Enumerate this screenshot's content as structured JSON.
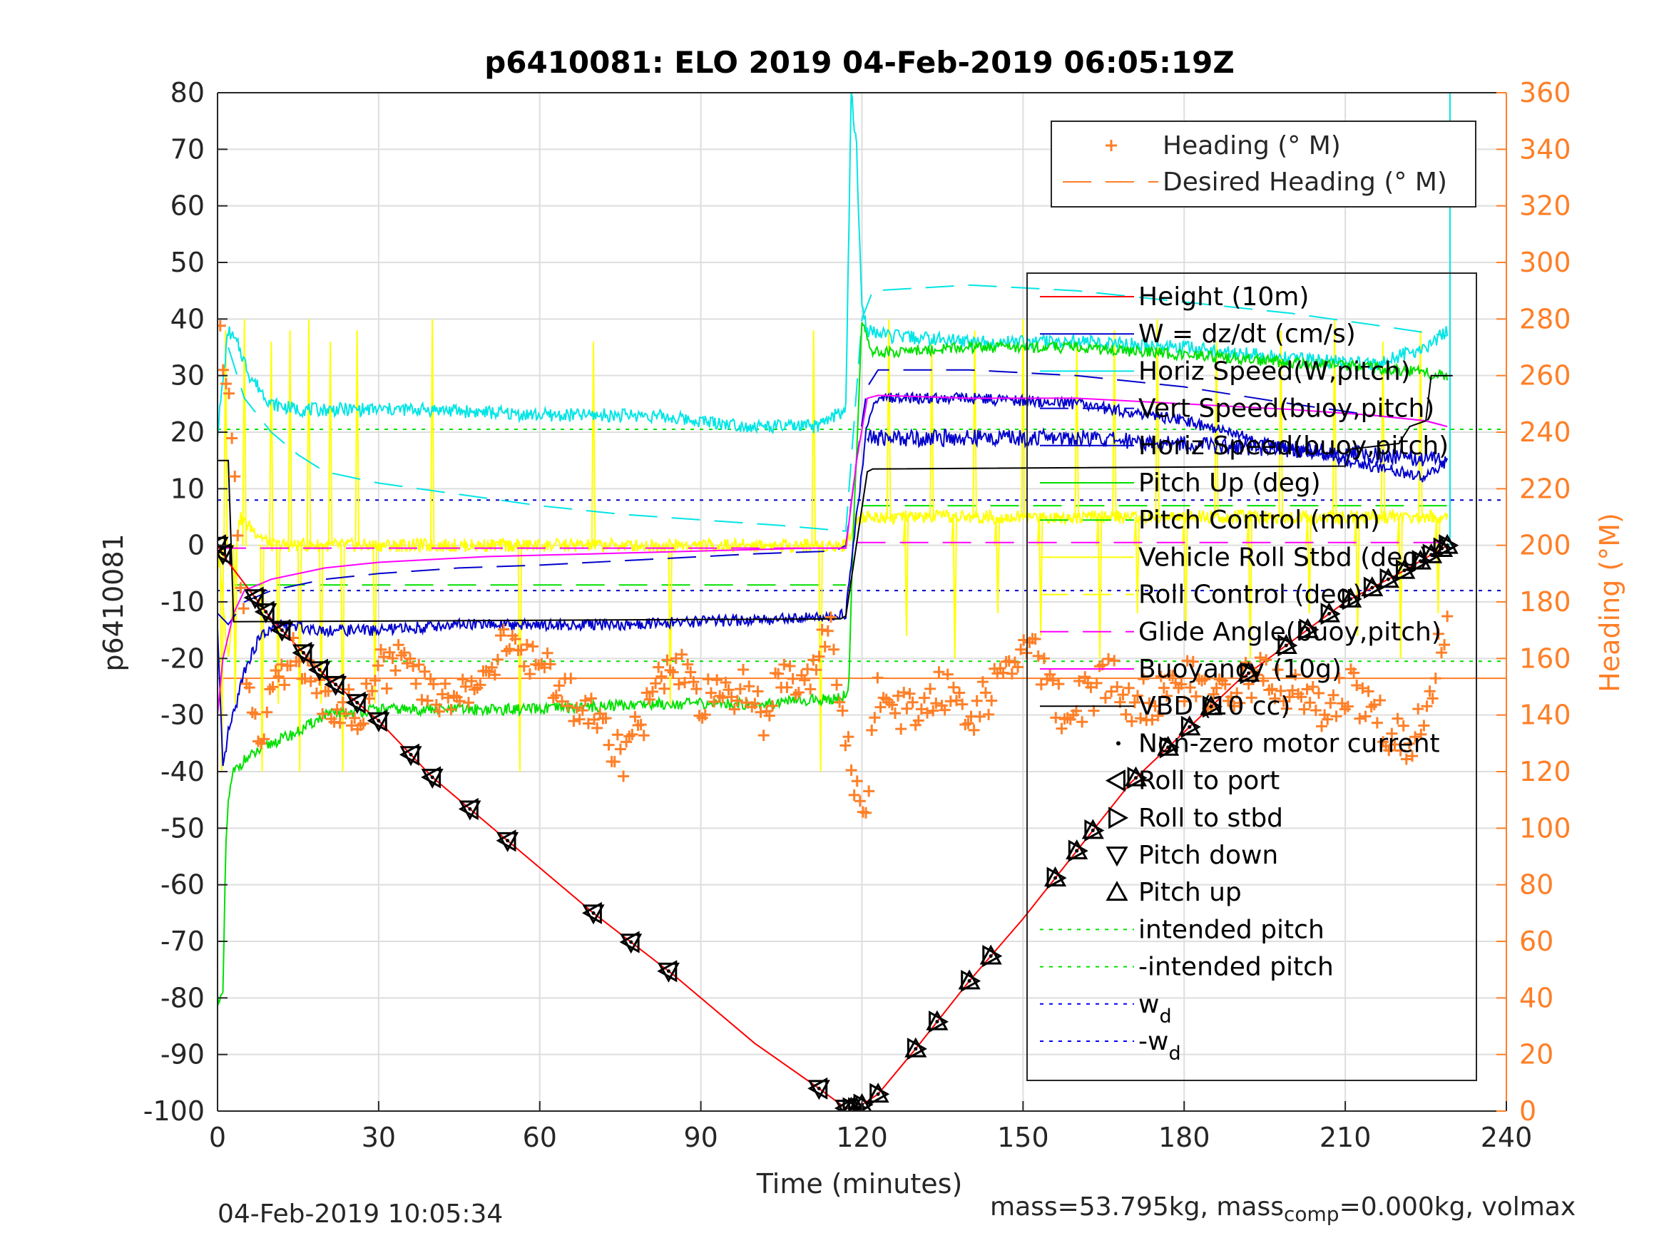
{
  "chart_data": {
    "type": "line",
    "title": "p6410081: ELO 2019 04-Feb-2019 06:05:19Z",
    "xlabel": "Time (minutes)",
    "ylabel_left": "p6410081",
    "ylabel_right": "Heading (°M)",
    "xlim": [
      0,
      240
    ],
    "ylim_left": [
      -100,
      80
    ],
    "ylim_right": [
      0,
      360
    ],
    "x_ticks": [
      "0",
      "30",
      "60",
      "90",
      "120",
      "150",
      "180",
      "210",
      "240"
    ],
    "y_ticks_left": [
      "80",
      "70",
      "60",
      "50",
      "40",
      "30",
      "20",
      "10",
      "0",
      "-10",
      "-20",
      "-30",
      "-40",
      "-50",
      "-60",
      "-70",
      "-80",
      "-90",
      "-100"
    ],
    "y_ticks_right": [
      "360",
      "340",
      "320",
      "300",
      "280",
      "260",
      "240",
      "220",
      "200",
      "180",
      "160",
      "140",
      "120",
      "100",
      "80",
      "60",
      "40",
      "20",
      "0"
    ],
    "grid": true,
    "footer_left": "04-Feb-2019 10:05:34",
    "footer_right_pre": "mass=53.795kg, mass",
    "footer_right_sub": "comp",
    "footer_right_post": "=0.000kg, volmax",
    "colors": {
      "heading": "#ff7f27",
      "height": "#ff0000",
      "w": "#0000cc",
      "horiz_speed": "#00e5e5",
      "pitch": "#00e000",
      "roll": "#ffff00",
      "glide": "#ff00ff",
      "vbd": "#000000",
      "text": "#262626"
    },
    "legend_top": {
      "position": "top-right",
      "entries": [
        "Heading (° M)",
        "Desired Heading (° M)"
      ]
    },
    "legend_main": {
      "position": "right",
      "entries": [
        {
          "label": "Height (10m)",
          "color": "#ff0000",
          "style": "solid"
        },
        {
          "label": "W = dz/dt (cm/s)",
          "color": "#0000cc",
          "style": "solid"
        },
        {
          "label": "Horiz Speed(W,pitch)",
          "color": "#00e5e5",
          "style": "solid"
        },
        {
          "label": "Vert Speed(buoy,pitch)",
          "color": "#0000cc",
          "style": "dashed"
        },
        {
          "label": "Horiz Speed(buoy,pitch)",
          "color": "#0000cc",
          "style": "solid"
        },
        {
          "label": "Pitch Up (deg)",
          "color": "#00e000",
          "style": "solid"
        },
        {
          "label": "Pitch Control (mm)",
          "color": "#00e000",
          "style": "dashed"
        },
        {
          "label": "Vehicle Roll Stbd (deg)",
          "color": "#ffff00",
          "style": "solid"
        },
        {
          "label": "Roll Control (deg)",
          "color": "#ffff00",
          "style": "dashed"
        },
        {
          "label": "Glide Angle(buoy,pitch)",
          "color": "#ff00ff",
          "style": "dashed"
        },
        {
          "label": "Buoyancy (10g)",
          "color": "#ff00ff",
          "style": "solid"
        },
        {
          "label": "VBD (10 cc)",
          "color": "#000000",
          "style": "solid"
        },
        {
          "label": "Non-zero motor current",
          "color": "#000000",
          "style": "dot"
        },
        {
          "label": "Roll to port",
          "color": "#000000",
          "style": "tri-left"
        },
        {
          "label": "Roll to stbd",
          "color": "#000000",
          "style": "tri-right"
        },
        {
          "label": "Pitch down",
          "color": "#000000",
          "style": "tri-down"
        },
        {
          "label": "Pitch up",
          "color": "#000000",
          "style": "tri-up"
        },
        {
          "label": "intended pitch",
          "color": "#00e000",
          "style": "dotted"
        },
        {
          "label": "-intended pitch",
          "color": "#00e000",
          "style": "dotted"
        },
        {
          "label": "w",
          "sub": "d",
          "color": "#0000ff",
          "style": "dotted"
        },
        {
          "label": "-w",
          "sub": "d",
          "color": "#0000ff",
          "style": "dotted"
        }
      ]
    },
    "reference_lines": {
      "intended_pitch": 20.5,
      "neg_intended_pitch": -20.5,
      "w_d": 8,
      "neg_w_d": -8,
      "desired_heading": 153,
      "pitch_control_dive": -7,
      "pitch_control_climb": 7,
      "glide_dive": -0.5,
      "glide_climb": 0.5
    },
    "series": [
      {
        "name": "Height (10m)",
        "axis": "left",
        "x": [
          0,
          2,
          10,
          20,
          30,
          40,
          55,
          70,
          85,
          100,
          112,
          117,
          119,
          123,
          130,
          140,
          150,
          160,
          170,
          180,
          190,
          200,
          210,
          220,
          229
        ],
        "y": [
          0,
          -3,
          -13,
          -23,
          -31,
          -41,
          -53,
          -65,
          -76,
          -88,
          -96,
          -99.5,
          -99.5,
          -97,
          -89,
          -77,
          -66,
          -54,
          -42,
          -33,
          -24,
          -17,
          -10,
          -5,
          0
        ]
      },
      {
        "name": "W = dz/dt (cm/s)",
        "axis": "left",
        "x": [
          0,
          1,
          2,
          3,
          5,
          8,
          12,
          20,
          30,
          45,
          60,
          75,
          90,
          105,
          115,
          117,
          121,
          123,
          140,
          160,
          180,
          200,
          215,
          225,
          229
        ],
        "y": [
          -15,
          -40,
          -33,
          -30,
          -22,
          -16,
          -14,
          -15,
          -15,
          -14,
          -14,
          -14,
          -13.5,
          -13,
          -12.5,
          -12,
          22,
          26,
          26,
          25,
          22,
          17,
          14,
          12,
          15
        ]
      },
      {
        "name": "Horiz Speed(W,pitch)",
        "axis": "left",
        "x": [
          0,
          2,
          4,
          6,
          10,
          15,
          20,
          40,
          60,
          80,
          100,
          112,
          115,
          117,
          118,
          119,
          120,
          121,
          125,
          140,
          160,
          180,
          200,
          215,
          225,
          229
        ],
        "y": [
          20,
          38,
          35,
          30,
          25,
          24,
          24,
          24,
          23,
          23,
          21,
          21,
          23,
          24,
          80,
          70,
          42,
          38,
          37,
          36,
          36,
          35,
          33,
          32,
          35,
          38
        ]
      },
      {
        "name": "Vert Speed(buoy,pitch)",
        "axis": "left",
        "x": [
          0,
          2,
          5,
          10,
          20,
          30,
          45,
          60,
          80,
          100,
          115,
          117,
          119,
          121,
          123,
          140,
          160,
          180,
          200,
          215,
          225,
          229
        ],
        "y": [
          -12,
          -14,
          -10,
          -8,
          -6,
          -5,
          -4,
          -3.5,
          -2.5,
          -1.5,
          -1,
          0,
          15,
          28,
          31,
          31,
          30,
          28,
          25,
          23,
          22,
          21
        ]
      },
      {
        "name": "Horiz Speed(buoy,pitch) dashed",
        "axis": "left",
        "x": [
          2,
          5,
          10,
          15,
          20,
          30,
          45,
          60,
          75,
          90,
          105,
          117,
          120,
          122,
          140,
          160,
          180,
          200,
          215,
          229
        ],
        "y": [
          35,
          26,
          20,
          16,
          13,
          11,
          9,
          7,
          5.5,
          4.5,
          3.5,
          2.5,
          40,
          45,
          46,
          45,
          43,
          41,
          39,
          37
        ]
      },
      {
        "name": "Pitch Up (deg)",
        "axis": "left",
        "x": [
          0,
          1,
          1.5,
          2,
          3,
          5,
          10,
          15,
          20,
          30,
          45,
          60,
          80,
          100,
          116,
          117.5,
          118.5,
          120,
          122,
          140,
          160,
          175,
          190,
          205,
          220,
          229
        ],
        "y": [
          -80,
          -80,
          -55,
          -45,
          -40,
          -38,
          -35,
          -33,
          -30,
          -29,
          -29,
          -29,
          -28,
          -28,
          -27,
          -26,
          5,
          40,
          34,
          35,
          35,
          34,
          33,
          32,
          31,
          30
        ]
      },
      {
        "name": "Glide Angle(buoy,pitch)",
        "axis": "left",
        "x": [
          0,
          117,
          118,
          119,
          229
        ],
        "y": [
          -0.5,
          -0.5,
          0.5,
          0.5,
          0.5
        ]
      },
      {
        "name": "Buoyancy (10g)",
        "axis": "left",
        "x": [
          0,
          1,
          3,
          5,
          10,
          20,
          30,
          50,
          70,
          90,
          110,
          117,
          119,
          121,
          123,
          140,
          160,
          180,
          200,
          215,
          225,
          229
        ],
        "y": [
          -30,
          -20,
          -12,
          -8,
          -6,
          -4,
          -3,
          -2,
          -1.5,
          -1,
          -0.5,
          -0.5,
          15,
          26,
          26.5,
          26,
          26,
          25,
          24,
          23,
          22,
          21
        ]
      },
      {
        "name": "VBD (10 cc)",
        "axis": "left",
        "x": [
          0,
          2,
          3,
          116,
          117,
          121,
          122,
          210,
          211,
          220,
          222,
          225,
          226,
          230
        ],
        "y": [
          15,
          15,
          -13.5,
          -13,
          -12.5,
          13,
          13.5,
          14,
          17,
          18,
          21,
          22,
          30,
          30
        ]
      },
      {
        "name": "Vehicle Roll Stbd (deg)",
        "axis": "left",
        "x": [
          0,
          2,
          4,
          10,
          20,
          40,
          60,
          80,
          100,
          117,
          119,
          123,
          140,
          160,
          180,
          200,
          229
        ],
        "y": [
          0,
          -20,
          5,
          0,
          0,
          0,
          0,
          0,
          0,
          0,
          5,
          5,
          5,
          5,
          5,
          5,
          5
        ]
      },
      {
        "name": "Heading (° M)",
        "axis": "right",
        "x": [
          0.5,
          2,
          4,
          6,
          8,
          10,
          14,
          18,
          22,
          26,
          30,
          34,
          38,
          42,
          46,
          50,
          54,
          58,
          62,
          66,
          70,
          74,
          76,
          78,
          82,
          86,
          90,
          94,
          98,
          102,
          106,
          110,
          112,
          114,
          116,
          118,
          119,
          120,
          121,
          122,
          125,
          128,
          131,
          134,
          137,
          140,
          143,
          146,
          149,
          152,
          155,
          158,
          161,
          164,
          167,
          170,
          174,
          178,
          182,
          186,
          190,
          194,
          198,
          202,
          206,
          210,
          214,
          218,
          222,
          226,
          229
        ],
        "y": [
          270,
          250,
          200,
          140,
          130,
          155,
          160,
          150,
          145,
          140,
          155,
          160,
          150,
          145,
          150,
          155,
          165,
          160,
          155,
          145,
          140,
          130,
          125,
          135,
          150,
          155,
          145,
          145,
          150,
          140,
          155,
          155,
          165,
          170,
          140,
          125,
          115,
          110,
          108,
          145,
          150,
          140,
          145,
          150,
          148,
          140,
          145,
          155,
          160,
          165,
          150,
          140,
          145,
          150,
          155,
          145,
          145,
          150,
          152,
          145,
          150,
          155,
          150,
          145,
          140,
          150,
          145,
          135,
          130,
          150,
          175
        ]
      }
    ],
    "markers_on_height": [
      0,
      1,
      7,
      9,
      12,
      16,
      19,
      22,
      26,
      30,
      36,
      40,
      47,
      54,
      70,
      77,
      84,
      112,
      117,
      118,
      119,
      120,
      123,
      130,
      134,
      140,
      144,
      156,
      160,
      163,
      171,
      177,
      181,
      185,
      192,
      199,
      203,
      207,
      211,
      215,
      218,
      221,
      224,
      226,
      228,
      229
    ]
  }
}
